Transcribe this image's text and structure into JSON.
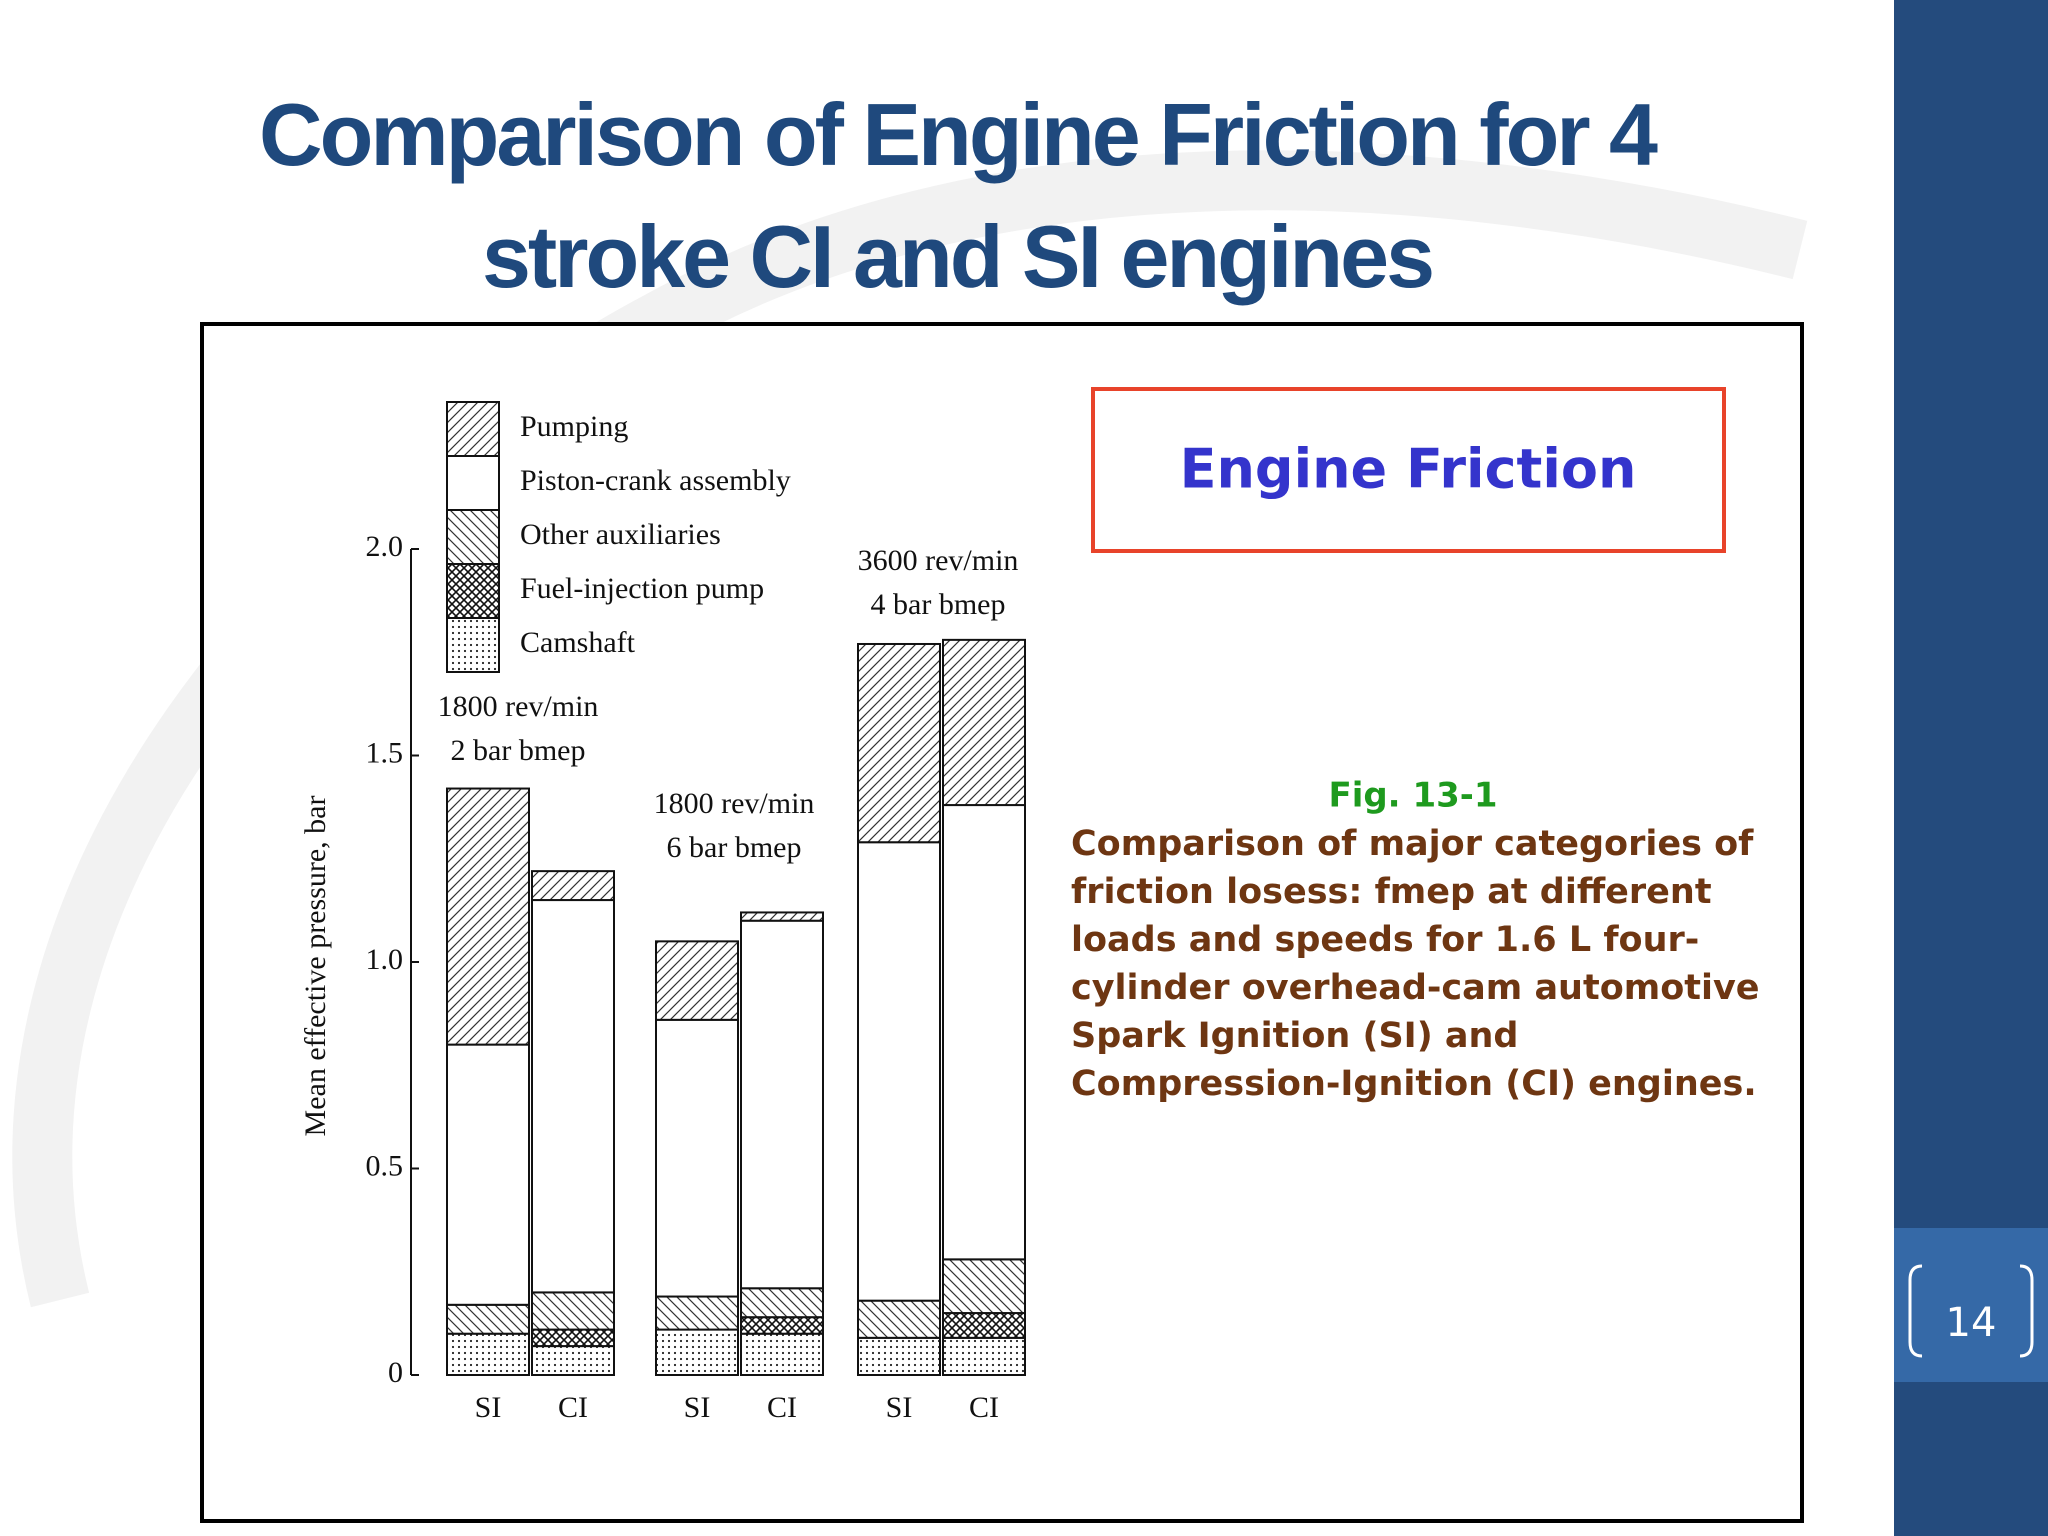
{
  "title": {
    "lines": [
      "Comparison of Engine Friction for 4",
      "stroke CI and SI engines"
    ]
  },
  "callout": "Engine Friction",
  "figure": {
    "label": "Fig. 13-1",
    "caption": [
      "Comparison of major categories of",
      "friction losess: fmep at different",
      "loads and speeds for 1.6 L four-",
      "cylinder overhead-cam automotive",
      "Spark Ignition (SI) and",
      "Compression-Ignition (CI) engines."
    ]
  },
  "page_number": "14",
  "chart_data": {
    "type": "stacked_bar",
    "y_label": "Mean effective pressure, bar",
    "categories": [
      "SI",
      "CI",
      "SI",
      "CI",
      "SI",
      "CI"
    ],
    "group_labels": [
      [
        "1800 rev/min",
        "2 bar bmep"
      ],
      [
        "1800 rev/min",
        "6 bar bmep"
      ],
      [
        "3600 rev/min",
        "4 bar bmep"
      ]
    ],
    "series": [
      {
        "name": "Camshaft",
        "pattern": "dots",
        "values": [
          0.1,
          0.07,
          0.11,
          0.1,
          0.09,
          0.09
        ]
      },
      {
        "name": "Fuel-injection pump",
        "pattern": "cross",
        "values": [
          0,
          0.04,
          0,
          0.04,
          0,
          0.06
        ]
      },
      {
        "name": "Other auxiliaries",
        "pattern": "backdiag",
        "values": [
          0.07,
          0.09,
          0.08,
          0.07,
          0.09,
          0.13
        ]
      },
      {
        "name": "Piston-crank assembly",
        "pattern": "blank",
        "values": [
          0.63,
          0.95,
          0.67,
          0.89,
          1.11,
          1.1
        ]
      },
      {
        "name": "Pumping",
        "pattern": "diag",
        "values": [
          0.62,
          0.07,
          0.19,
          0.02,
          0.48,
          0.4
        ]
      }
    ],
    "ylim": [
      0,
      2
    ],
    "yticks": [
      0,
      0.5,
      {
        "value": 1,
        "label": "1.0"
      },
      1.5,
      {
        "value": 2,
        "label": "2.0"
      }
    ]
  }
}
